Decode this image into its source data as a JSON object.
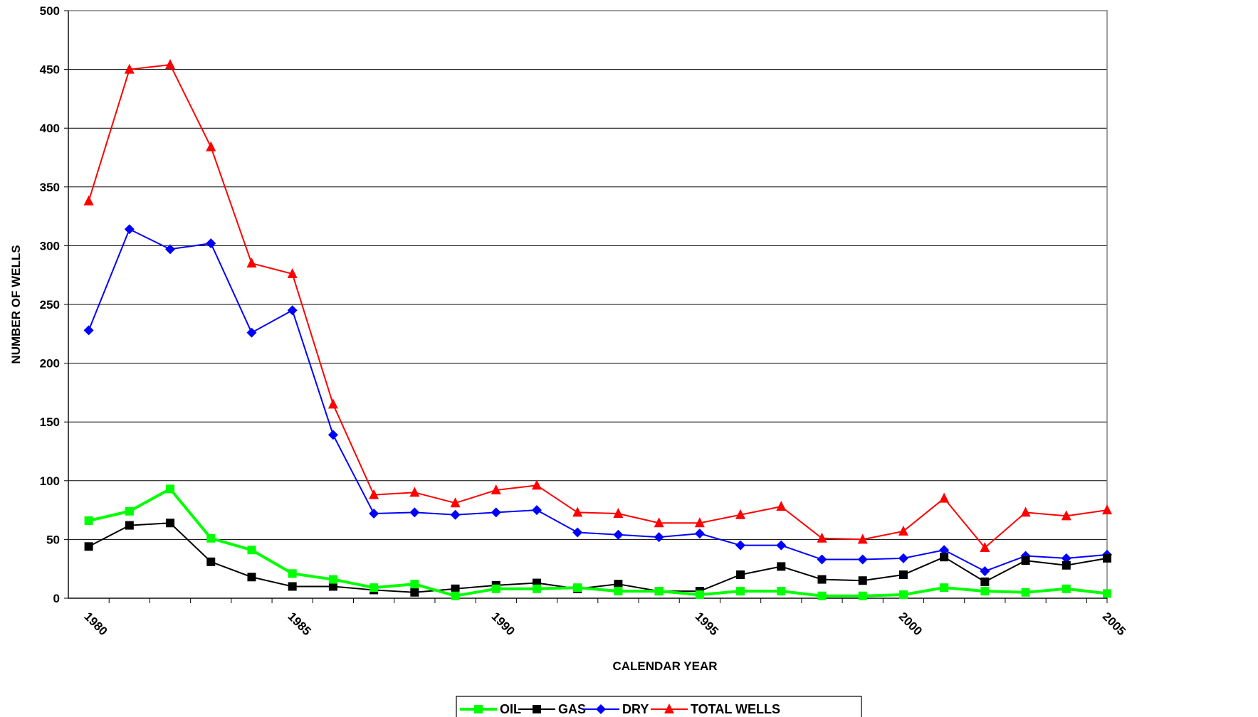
{
  "chart_data": {
    "type": "line",
    "title": "",
    "xlabel": "CALENDAR YEAR",
    "ylabel": "NUMBER OF WELLS",
    "xlim": [
      1979.5,
      2005
    ],
    "ylim": [
      0,
      500
    ],
    "x_ticks": [
      1980,
      1985,
      1990,
      1995,
      2000,
      2005
    ],
    "y_ticks": [
      0,
      50,
      100,
      150,
      200,
      250,
      300,
      350,
      400,
      450,
      500
    ],
    "grid": "horizontal",
    "legend_position": "bottom",
    "x": [
      1980,
      1981,
      1982,
      1983,
      1984,
      1985,
      1986,
      1987,
      1988,
      1989,
      1990,
      1991,
      1992,
      1993,
      1994,
      1995,
      1996,
      1997,
      1998,
      1999,
      2000,
      2001,
      2002,
      2003,
      2004,
      2005
    ],
    "series": [
      {
        "name": "OIL",
        "color": "#00ff00",
        "marker": "square",
        "line_width": 4,
        "values": [
          66,
          74,
          93,
          51,
          41,
          21,
          16,
          9,
          12,
          2,
          8,
          8,
          9,
          6,
          6,
          3,
          6,
          6,
          2,
          2,
          3,
          9,
          6,
          5,
          8,
          4
        ]
      },
      {
        "name": "GAS",
        "color": "#000000",
        "marker": "square",
        "line_width": 2,
        "values": [
          44,
          62,
          64,
          31,
          18,
          10,
          10,
          7,
          5,
          8,
          11,
          13,
          8,
          12,
          6,
          6,
          20,
          27,
          16,
          15,
          20,
          35,
          14,
          32,
          28,
          34
        ]
      },
      {
        "name": "DRY",
        "color": "#0000ff",
        "marker": "diamond",
        "line_width": 2,
        "values": [
          228,
          314,
          297,
          302,
          226,
          245,
          139,
          72,
          73,
          71,
          73,
          75,
          56,
          54,
          52,
          55,
          45,
          45,
          33,
          33,
          34,
          41,
          23,
          36,
          34,
          37
        ]
      },
      {
        "name": "TOTAL WELLS",
        "color": "#ff0000",
        "marker": "triangle",
        "line_width": 2,
        "values": [
          338,
          450,
          454,
          384,
          285,
          276,
          165,
          88,
          90,
          81,
          92,
          96,
          73,
          72,
          64,
          64,
          71,
          78,
          51,
          50,
          57,
          85,
          43,
          73,
          70,
          75
        ]
      }
    ]
  }
}
